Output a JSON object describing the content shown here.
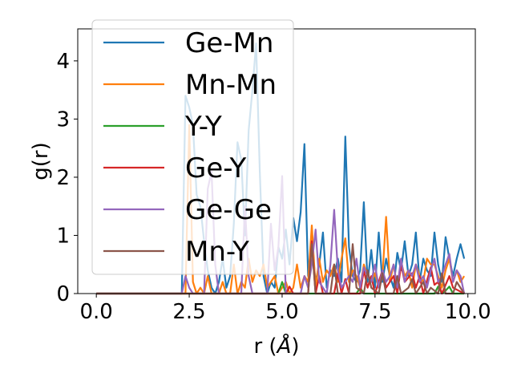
{
  "chart_data": {
    "type": "line",
    "xlabel": "r (",
    "xlabel_unit": "Å",
    "xlabel_close": ")",
    "ylabel": "g(r)",
    "xlim": [
      -0.5,
      10.2
    ],
    "ylim": [
      0,
      4.55
    ],
    "xticks": [
      0.0,
      2.5,
      5.0,
      7.5,
      10.0
    ],
    "xtick_labels": [
      "0.0",
      "2.5",
      "5.0",
      "7.5",
      "10.0"
    ],
    "yticks": [
      0,
      1,
      2,
      3,
      4
    ],
    "ytick_labels": [
      "0",
      "1",
      "2",
      "3",
      "4"
    ],
    "grid": false,
    "legend_position": "top-left",
    "series": [
      {
        "name": "Ge-Mn",
        "color": "#1f77b4",
        "x": [
          0.0,
          2.2,
          2.3,
          2.4,
          2.5,
          2.6,
          2.7,
          2.8,
          2.9,
          3.0,
          3.1,
          3.2,
          3.3,
          3.4,
          3.5,
          3.6,
          3.7,
          3.8,
          3.9,
          4.0,
          4.1,
          4.2,
          4.3,
          4.4,
          4.5,
          4.6,
          4.7,
          4.8,
          4.9,
          5.0,
          5.1,
          5.2,
          5.3,
          5.4,
          5.5,
          5.6,
          5.7,
          5.8,
          5.9,
          6.0,
          6.1,
          6.2,
          6.3,
          6.4,
          6.5,
          6.6,
          6.7,
          6.8,
          6.9,
          7.0,
          7.1,
          7.2,
          7.3,
          7.4,
          7.5,
          7.6,
          7.7,
          7.8,
          7.9,
          8.0,
          8.1,
          8.2,
          8.3,
          8.4,
          8.5,
          8.6,
          8.7,
          8.8,
          8.9,
          9.0,
          9.1,
          9.2,
          9.3,
          9.4,
          9.5,
          9.6,
          9.7,
          9.8,
          9.9
        ],
        "y": [
          0,
          0,
          0,
          3.4,
          3.2,
          2.9,
          1.7,
          1.5,
          0.9,
          0.4,
          0.1,
          0,
          0.2,
          0.6,
          0.1,
          0.3,
          1.2,
          2.6,
          2.3,
          1.0,
          2.8,
          3.5,
          4.3,
          2.1,
          0.3,
          0,
          0.2,
          0.1,
          0.8,
          0.6,
          1.1,
          0.5,
          1.3,
          0.9,
          1.4,
          2.57,
          0.3,
          0.9,
          0.2,
          0.5,
          1.05,
          0.1,
          0.4,
          0.3,
          0.6,
          0.2,
          2.7,
          0.8,
          0.3,
          0.2,
          0.4,
          1.57,
          0.2,
          0.75,
          0.1,
          1.05,
          0.2,
          0.6,
          0.3,
          0.1,
          0.7,
          0.4,
          0.9,
          0.3,
          0.5,
          1.05,
          0.2,
          0.6,
          0.4,
          0.3,
          1.05,
          0.5,
          0.2,
          0.97,
          0.6,
          0.3,
          0.6,
          0.85,
          0.6
        ]
      },
      {
        "name": "Mn-Mn",
        "color": "#ff7f0e",
        "x": [
          0.0,
          2.3,
          2.4,
          2.5,
          2.6,
          2.7,
          2.8,
          2.9,
          3.0,
          3.1,
          3.2,
          3.3,
          3.4,
          3.5,
          3.6,
          3.7,
          3.8,
          3.9,
          4.0,
          4.1,
          4.2,
          4.3,
          4.4,
          4.5,
          4.6,
          4.7,
          4.8,
          4.9,
          5.0,
          5.1,
          5.2,
          5.3,
          5.4,
          5.5,
          5.6,
          5.7,
          5.8,
          5.9,
          6.0,
          6.1,
          6.2,
          6.3,
          6.4,
          6.5,
          6.6,
          6.7,
          6.8,
          6.9,
          7.0,
          7.1,
          7.2,
          7.3,
          7.4,
          7.5,
          7.6,
          7.7,
          7.8,
          7.9,
          8.0,
          8.1,
          8.2,
          8.3,
          8.4,
          8.5,
          8.6,
          8.7,
          8.8,
          8.9,
          9.0,
          9.1,
          9.2,
          9.3,
          9.4,
          9.5,
          9.6,
          9.7,
          9.8,
          9.9
        ],
        "y": [
          0,
          0,
          0,
          2.9,
          0.2,
          0,
          0.1,
          0,
          0.3,
          0,
          0,
          0,
          0.2,
          0,
          0,
          0.5,
          0,
          0.2,
          0.1,
          0.6,
          0.2,
          0.4,
          0.3,
          0.5,
          0.1,
          0.2,
          0.3,
          0,
          0.1,
          0.2,
          0,
          0.1,
          0.5,
          0.1,
          0.3,
          0.2,
          1.17,
          0.1,
          0.6,
          0.2,
          0.4,
          0.3,
          0.5,
          0.2,
          0.6,
          0.95,
          0.2,
          0.4,
          0.3,
          0.1,
          0.5,
          0.3,
          0.2,
          0.35,
          0.1,
          0.3,
          1.32,
          0.2,
          0.5,
          0.1,
          0.55,
          0.3,
          0.4,
          0.1,
          0.5,
          0.3,
          0.2,
          0.6,
          0.5,
          0.5,
          0.3,
          0.1,
          0.4,
          0.6,
          0.2,
          0.4,
          0.2,
          0.3
        ]
      },
      {
        "name": "Y-Y",
        "color": "#2ca02c",
        "x": [
          0.0,
          4.9,
          5.0,
          5.1,
          7.0,
          7.1,
          7.2,
          9.1,
          9.2,
          9.3,
          9.4,
          9.5,
          9.6,
          9.9
        ],
        "y": [
          0,
          0,
          0.2,
          0,
          0,
          0.1,
          0,
          0,
          0.12,
          0,
          0.05,
          0.12,
          0,
          0
        ]
      },
      {
        "name": "Ge-Y",
        "color": "#d62728",
        "x": [
          0.0,
          5.1,
          5.2,
          5.3,
          5.7,
          5.8,
          5.9,
          6.0,
          6.1,
          6.4,
          6.5,
          6.6,
          6.7,
          6.8,
          7.1,
          7.2,
          7.3,
          7.4,
          7.5,
          7.6,
          7.7,
          7.8,
          8.0,
          8.1,
          8.2,
          8.3,
          8.5,
          8.6,
          8.7,
          8.8,
          9.0,
          9.1,
          9.2,
          9.3,
          9.5,
          9.6,
          9.9
        ],
        "y": [
          0,
          0,
          0.12,
          0,
          0,
          0.9,
          0,
          0.3,
          0,
          0,
          0.35,
          0,
          0.25,
          0,
          0,
          0.4,
          0.1,
          0.3,
          0,
          0.2,
          0.4,
          0.1,
          0.3,
          0,
          0.5,
          0.2,
          0.35,
          0.1,
          0.3,
          0,
          0.45,
          0.15,
          0.2,
          0,
          0.3,
          0.1,
          0
        ]
      },
      {
        "name": "Ge-Ge",
        "color": "#9467bd",
        "x": [
          0.0,
          2.3,
          2.4,
          2.5,
          2.6,
          2.9,
          3.0,
          3.1,
          3.2,
          3.3,
          3.9,
          4.0,
          4.1,
          4.2,
          4.6,
          4.7,
          4.8,
          4.9,
          5.0,
          5.1,
          5.5,
          5.6,
          5.7,
          5.8,
          5.9,
          6.0,
          6.2,
          6.3,
          6.4,
          6.5,
          6.6,
          6.8,
          6.9,
          7.0,
          7.1,
          7.2,
          7.3,
          7.4,
          7.5,
          7.6,
          7.7,
          7.8,
          7.9,
          8.0,
          8.1,
          8.2,
          8.3,
          8.4,
          8.5,
          8.6,
          8.7,
          8.8,
          8.9,
          9.0,
          9.1,
          9.2,
          9.3,
          9.4,
          9.5,
          9.6,
          9.7,
          9.8,
          9.9
        ],
        "y": [
          0,
          0,
          0.3,
          0.1,
          0,
          0,
          1.8,
          2.1,
          0.5,
          0,
          0,
          1.5,
          0.3,
          0,
          0,
          1.2,
          0.4,
          0.8,
          2.02,
          0,
          0,
          0.3,
          0.1,
          0.5,
          1.1,
          0.2,
          0,
          0.5,
          1.44,
          0.4,
          0.1,
          0.3,
          0.2,
          0.6,
          0.1,
          0.45,
          0.3,
          0.2,
          0.5,
          0.1,
          0.4,
          0.2,
          0.3,
          0.5,
          0.1,
          0.6,
          0.2,
          0.4,
          0.3,
          0.5,
          0.2,
          0.3,
          0.1,
          0.4,
          0.6,
          0.2,
          0.3,
          0.5,
          0.68,
          0.2,
          0.4,
          0.3,
          0
        ]
      },
      {
        "name": "Mn-Y",
        "color": "#8c564b",
        "x": [
          0.0,
          5.7,
          5.8,
          5.9,
          6.3,
          6.4,
          6.5,
          6.8,
          6.9,
          7.0,
          7.2,
          7.3,
          7.4,
          7.6,
          7.7,
          7.8,
          8.0,
          8.1,
          8.2,
          8.4,
          8.5,
          8.6,
          8.8,
          8.9,
          9.0,
          9.2,
          9.3,
          9.4,
          9.6,
          9.7,
          9.9
        ],
        "y": [
          0,
          0,
          0.85,
          0,
          0,
          0.5,
          0,
          0,
          0.85,
          0.1,
          0,
          0.4,
          0.1,
          0,
          0.35,
          0,
          0,
          0.3,
          0,
          0.1,
          0.25,
          0,
          0.2,
          0,
          0.1,
          0,
          0.35,
          0,
          0,
          0.2,
          0
        ]
      }
    ]
  }
}
